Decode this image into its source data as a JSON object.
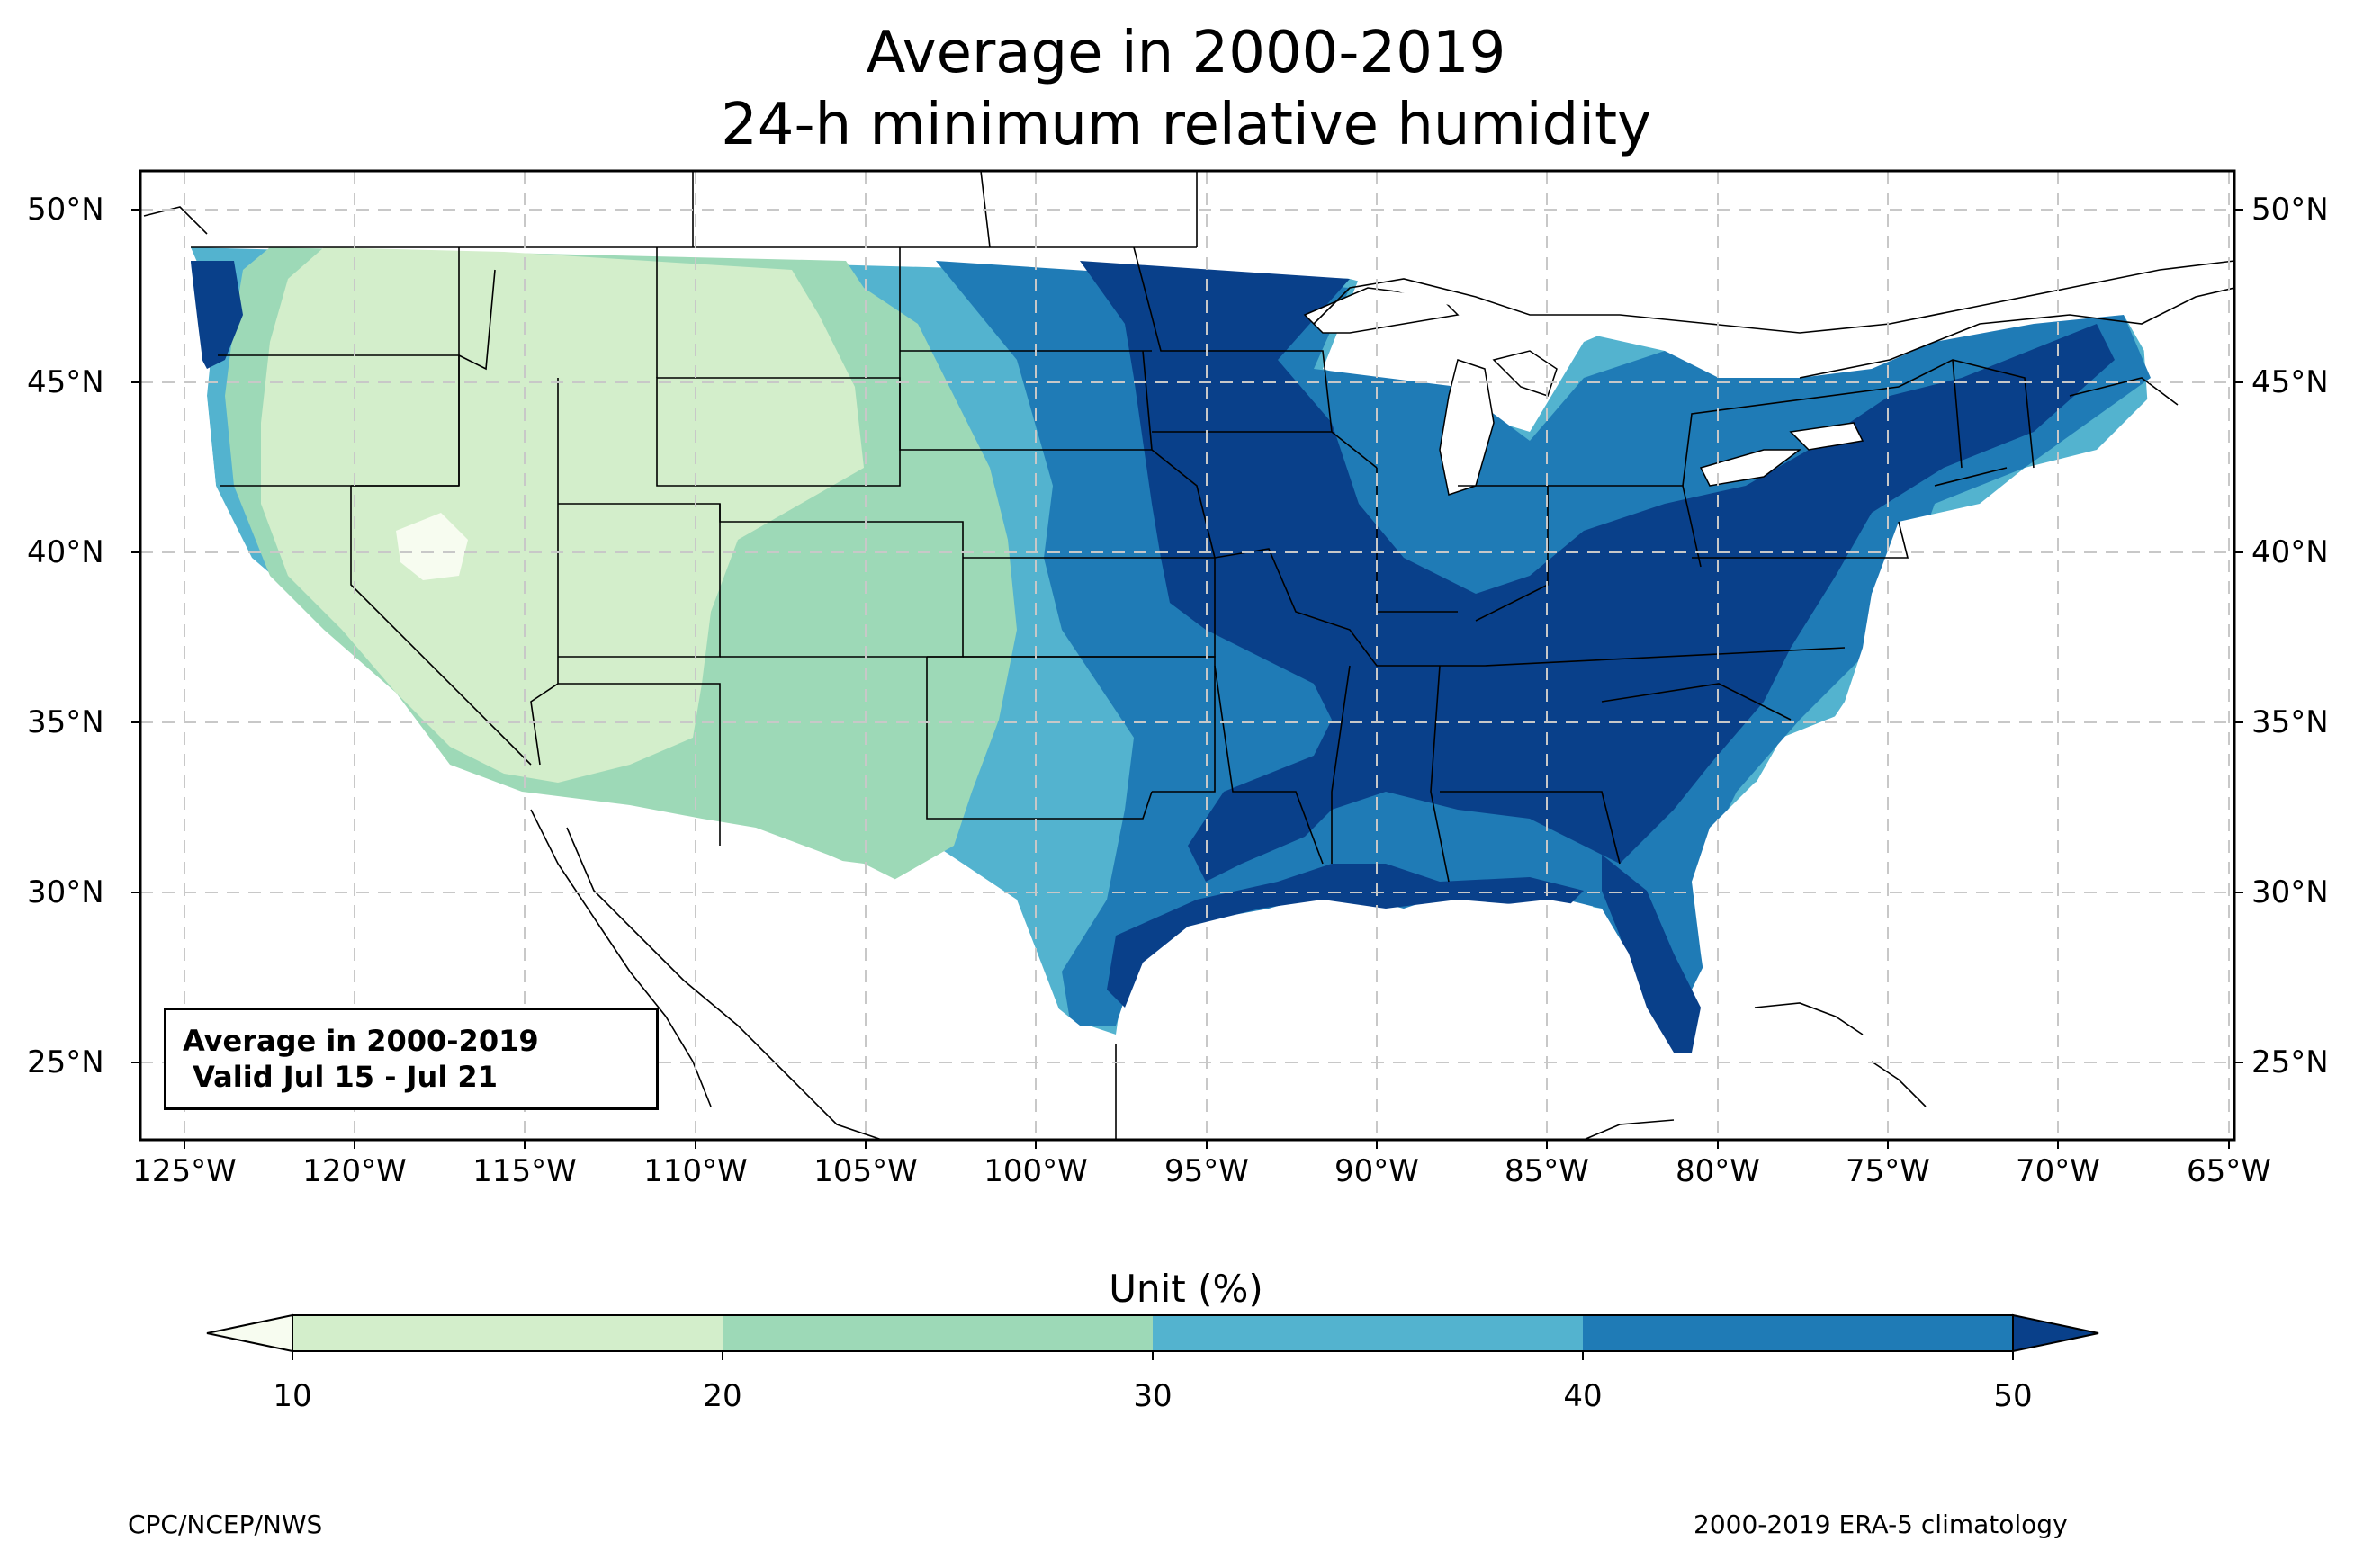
{
  "title": {
    "line1": "Average in 2000-2019",
    "line2": "24-h minimum relative humidity"
  },
  "map": {
    "projection": "PlateCarree",
    "extent": {
      "lon_min": -126.3,
      "lon_max": -64.9,
      "lat_min": 22.8,
      "lat_max": 51.2
    },
    "gridlines": "dashed",
    "lat_ticks": [
      "50°N",
      "45°N",
      "40°N",
      "35°N",
      "30°N",
      "25°N"
    ],
    "lon_ticks": [
      "125°W",
      "120°W",
      "115°W",
      "110°W",
      "105°W",
      "100°W",
      "95°W",
      "90°W",
      "85°W",
      "80°W",
      "75°W",
      "70°W",
      "65°W"
    ],
    "field": "24-h minimum relative humidity, weekly average",
    "regions": [
      {
        "area": "Great Basin / Desert Southwest",
        "level": "10-20"
      },
      {
        "area": "Northern Rockies / High Plains",
        "level": "20-30"
      },
      {
        "area": "Central Plains",
        "level": "30-40"
      },
      {
        "area": "Midwest / Great Lakes",
        "level": "40-50"
      },
      {
        "area": "Southeast / Gulf Coast / Northeast",
        "level": ">50"
      },
      {
        "area": "Pacific Northwest coast",
        "level": ">50"
      }
    ]
  },
  "infobox": {
    "line1": "Average in 2000-2019",
    "line2": " Valid Jul 15 - Jul 21"
  },
  "colorbar": {
    "title": "Unit (%)",
    "ticks": [
      "10",
      "20",
      "30",
      "40",
      "50"
    ],
    "colors": {
      "under": "#f7fcf0",
      "b10_20": "#d3eecb",
      "b20_30": "#9dd9b7",
      "b30_40": "#53b3cf",
      "b40_50": "#1f7bb6",
      "over": "#09408a"
    },
    "extend": "both"
  },
  "footer": {
    "left": "CPC/NCEP/NWS",
    "right": "2000-2019 ERA-5 climatology"
  }
}
